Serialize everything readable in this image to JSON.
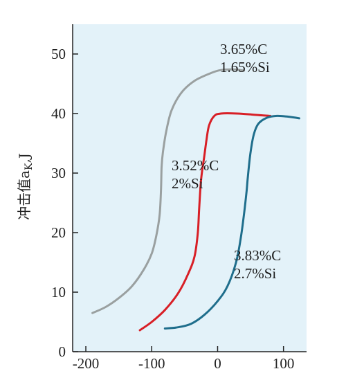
{
  "chart_data": {
    "type": "line",
    "title": "",
    "xlabel": "",
    "ylabel": "冲击值a_K,J",
    "xlim": [
      -220,
      135
    ],
    "ylim": [
      0,
      55
    ],
    "x_ticks": [
      -200,
      -100,
      0,
      100
    ],
    "y_ticks": [
      0,
      10,
      20,
      30,
      40,
      50
    ],
    "grid": false,
    "legend": "none",
    "colors": {
      "plot_background": "#e3f2f9",
      "axis": "#222222"
    },
    "series": [
      {
        "name": "3.65%C 1.65%Si",
        "color": "#9aa0a0",
        "points": [
          [
            -190,
            6.5
          ],
          [
            -170,
            7.5
          ],
          [
            -150,
            9
          ],
          [
            -130,
            11
          ],
          [
            -112,
            13.8
          ],
          [
            -100,
            16.5
          ],
          [
            -93,
            19.5
          ],
          [
            -88,
            23
          ],
          [
            -86,
            27
          ],
          [
            -85,
            31
          ],
          [
            -83,
            33.5
          ],
          [
            -78,
            37
          ],
          [
            -70,
            40.5
          ],
          [
            -55,
            43.5
          ],
          [
            -35,
            45.5
          ],
          [
            -10,
            46.8
          ],
          [
            5,
            47.3
          ],
          [
            25,
            47.4
          ],
          [
            40,
            47.2
          ]
        ]
      },
      {
        "name": "3.52%C 2%Si",
        "color": "#d81f26",
        "points": [
          [
            -118,
            3.6
          ],
          [
            -100,
            5
          ],
          [
            -80,
            7
          ],
          [
            -60,
            9.8
          ],
          [
            -45,
            13
          ],
          [
            -35,
            16
          ],
          [
            -30,
            20
          ],
          [
            -28,
            24
          ],
          [
            -25,
            29
          ],
          [
            -20,
            33
          ],
          [
            -17,
            35.5
          ],
          [
            -13,
            38
          ],
          [
            -5,
            39.6
          ],
          [
            5,
            40
          ],
          [
            30,
            40
          ],
          [
            55,
            39.8
          ],
          [
            80,
            39.6
          ]
        ]
      },
      {
        "name": "3.83%C 2.7%Si",
        "color": "#1f6e8c",
        "points": [
          [
            -80,
            3.9
          ],
          [
            -60,
            4.1
          ],
          [
            -40,
            4.7
          ],
          [
            -20,
            6.2
          ],
          [
            0,
            8.5
          ],
          [
            15,
            11
          ],
          [
            28,
            15
          ],
          [
            35,
            19
          ],
          [
            40,
            23
          ],
          [
            44,
            27
          ],
          [
            46,
            29.5
          ],
          [
            50,
            33.5
          ],
          [
            55,
            36.5
          ],
          [
            62,
            38.3
          ],
          [
            75,
            39.3
          ],
          [
            90,
            39.6
          ],
          [
            105,
            39.5
          ],
          [
            124,
            39.2
          ]
        ]
      }
    ],
    "annotations": [
      {
        "lines": [
          "3.65%C",
          "1.65%Si"
        ],
        "series": 0
      },
      {
        "lines": [
          "3.52%C",
          "2%Si"
        ],
        "series": 1
      },
      {
        "lines": [
          "3.83%C",
          "2.7%Si"
        ],
        "series": 2
      }
    ]
  }
}
